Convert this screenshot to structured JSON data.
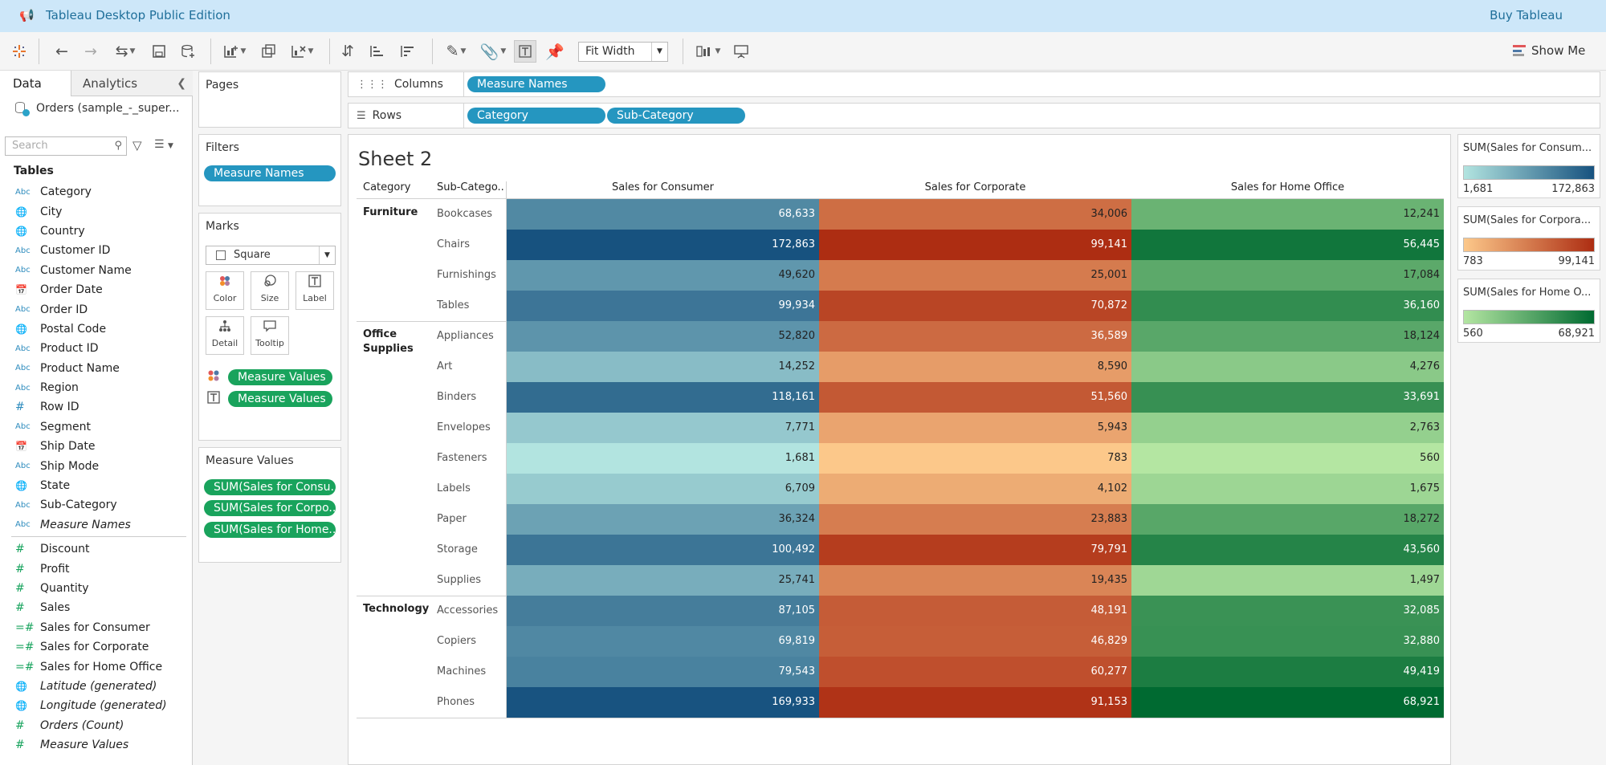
{
  "titlebar": {
    "title": "Tableau Desktop Public Edition",
    "buy": "Buy Tableau"
  },
  "toolbar": {
    "fit": "Fit Width",
    "show_me": "Show Me"
  },
  "datapane": {
    "tab_data": "Data",
    "tab_analytics": "Analytics",
    "datasource": "Orders (sample_-_super...",
    "search_placeholder": "Search",
    "tables_header": "Tables",
    "dimensions": [
      {
        "type": "Abc",
        "name": "Category"
      },
      {
        "type": "globe",
        "name": "City"
      },
      {
        "type": "globe",
        "name": "Country"
      },
      {
        "type": "Abc",
        "name": "Customer ID"
      },
      {
        "type": "Abc",
        "name": "Customer Name"
      },
      {
        "type": "date",
        "name": "Order Date"
      },
      {
        "type": "Abc",
        "name": "Order ID"
      },
      {
        "type": "globe",
        "name": "Postal Code"
      },
      {
        "type": "Abc",
        "name": "Product ID"
      },
      {
        "type": "Abc",
        "name": "Product Name"
      },
      {
        "type": "Abc",
        "name": "Region"
      },
      {
        "type": "num",
        "name": "Row ID"
      },
      {
        "type": "Abc",
        "name": "Segment"
      },
      {
        "type": "date",
        "name": "Ship Date"
      },
      {
        "type": "Abc",
        "name": "Ship Mode"
      },
      {
        "type": "globe",
        "name": "State"
      },
      {
        "type": "Abc",
        "name": "Sub-Category"
      },
      {
        "type": "Abc",
        "name": "Measure Names",
        "italic": true
      }
    ],
    "measures": [
      {
        "type": "num",
        "name": "Discount"
      },
      {
        "type": "num",
        "name": "Profit"
      },
      {
        "type": "num",
        "name": "Quantity"
      },
      {
        "type": "num",
        "name": "Sales"
      },
      {
        "type": "calc",
        "name": "Sales for Consumer"
      },
      {
        "type": "calc",
        "name": "Sales for Corporate"
      },
      {
        "type": "calc",
        "name": "Sales for Home Office"
      },
      {
        "type": "globe",
        "name": "Latitude (generated)",
        "italic": true
      },
      {
        "type": "globe",
        "name": "Longitude (generated)",
        "italic": true
      },
      {
        "type": "num",
        "name": "Orders (Count)",
        "italic": true
      },
      {
        "type": "num",
        "name": "Measure Values",
        "italic": true
      }
    ]
  },
  "pages": {
    "title": "Pages"
  },
  "filters": {
    "title": "Filters",
    "pill": "Measure Names"
  },
  "marks": {
    "title": "Marks",
    "type": "Square",
    "buttons": [
      "Color",
      "Size",
      "Label",
      "Detail",
      "Tooltip"
    ],
    "pills": [
      "Measure Values",
      "Measure Values"
    ]
  },
  "measure_values": {
    "title": "Measure Values",
    "pills": [
      "SUM(Sales for Consu..",
      "SUM(Sales for Corpo..",
      "SUM(Sales for Home.."
    ]
  },
  "shelves": {
    "columns_label": "Columns",
    "columns_pills": [
      "Measure Names"
    ],
    "rows_label": "Rows",
    "rows_pills": [
      "Category",
      "Sub-Category"
    ]
  },
  "sheet": {
    "title": "Sheet 2",
    "headers": [
      "Category",
      "Sub-Catego..",
      "Sales for Consumer",
      "Sales for Corporate",
      "Sales for Home Office"
    ]
  },
  "chart_data": {
    "type": "table",
    "title": "Sheet 2",
    "columns": [
      "Sales for Consumer",
      "Sales for Corporate",
      "Sales for Home Office"
    ],
    "groups": [
      {
        "category": "Furniture",
        "rows": [
          {
            "sub": "Bookcases",
            "values": [
              68633,
              34006,
              12241
            ]
          },
          {
            "sub": "Chairs",
            "values": [
              172863,
              99141,
              56445
            ]
          },
          {
            "sub": "Furnishings",
            "values": [
              49620,
              25001,
              17084
            ]
          },
          {
            "sub": "Tables",
            "values": [
              99934,
              70872,
              36160
            ]
          }
        ]
      },
      {
        "category": "Office Supplies",
        "rows": [
          {
            "sub": "Appliances",
            "values": [
              52820,
              36589,
              18124
            ]
          },
          {
            "sub": "Art",
            "values": [
              14252,
              8590,
              4276
            ]
          },
          {
            "sub": "Binders",
            "values": [
              118161,
              51560,
              33691
            ]
          },
          {
            "sub": "Envelopes",
            "values": [
              7771,
              5943,
              2763
            ]
          },
          {
            "sub": "Fasteners",
            "values": [
              1681,
              783,
              560
            ]
          },
          {
            "sub": "Labels",
            "values": [
              6709,
              4102,
              1675
            ]
          },
          {
            "sub": "Paper",
            "values": [
              36324,
              23883,
              18272
            ]
          },
          {
            "sub": "Storage",
            "values": [
              100492,
              79791,
              43560
            ]
          },
          {
            "sub": "Supplies",
            "values": [
              25741,
              19435,
              1497
            ]
          }
        ]
      },
      {
        "category": "Technology",
        "rows": [
          {
            "sub": "Accessories",
            "values": [
              87105,
              48191,
              32085
            ]
          },
          {
            "sub": "Copiers",
            "values": [
              69819,
              46829,
              32880
            ]
          },
          {
            "sub": "Machines",
            "values": [
              79543,
              60277,
              49419
            ]
          },
          {
            "sub": "Phones",
            "values": [
              169933,
              91153,
              68921
            ]
          }
        ]
      }
    ],
    "palettes": [
      {
        "low": "#b2e4e0",
        "high": "#17527f"
      },
      {
        "low": "#fcc88a",
        "high": "#ad2d12"
      },
      {
        "low": "#b4e6a2",
        "high": "#006a31"
      }
    ]
  },
  "legends": [
    {
      "title": "SUM(Sales for Consum...",
      "min": "1,681",
      "max": "172,863",
      "low": "#b2e4e0",
      "high": "#17527f"
    },
    {
      "title": "SUM(Sales for Corpora...",
      "min": "783",
      "max": "99,141",
      "low": "#fcc88a",
      "high": "#ad2d12"
    },
    {
      "title": "SUM(Sales for Home O...",
      "min": "560",
      "max": "68,921",
      "low": "#b4e6a2",
      "high": "#006a31"
    }
  ]
}
